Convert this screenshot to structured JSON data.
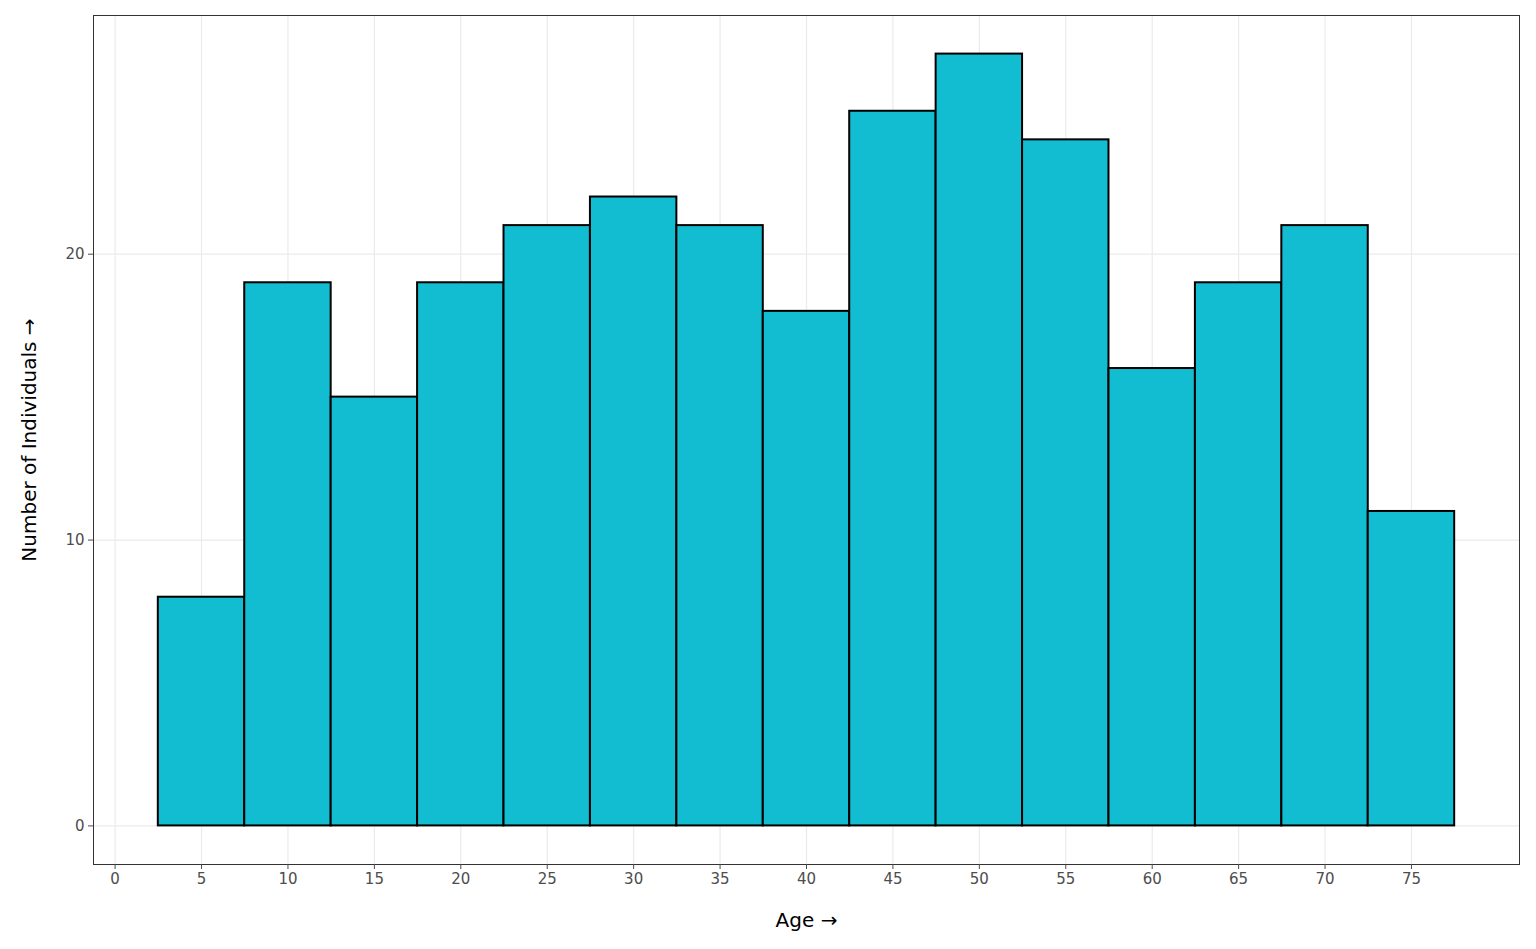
{
  "chart_data": {
    "type": "histogram",
    "x_label": "Age",
    "y_label": "Number of Individuals",
    "bins": [
      2.5,
      7.5,
      12.5,
      17.5,
      22.5,
      27.5,
      32.5,
      37.5,
      42.5,
      47.5,
      52.5,
      57.5,
      62.5,
      67.5,
      72.5,
      77.5
    ],
    "values": [
      8,
      19,
      15,
      19,
      21,
      22,
      21,
      18,
      25,
      27,
      24,
      16,
      19,
      21,
      11
    ],
    "color": "#12bdd1",
    "xlim": [
      -1.25,
      81.25
    ],
    "xticks": [
      0,
      5,
      10,
      15,
      20,
      25,
      30,
      35,
      40,
      45,
      50,
      55,
      60,
      65,
      70,
      75
    ],
    "ylim": [
      -1.35,
      28.35
    ],
    "yticks": [
      0,
      10,
      20
    ],
    "grid": true
  }
}
